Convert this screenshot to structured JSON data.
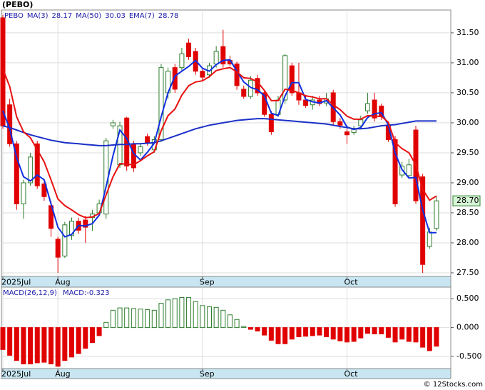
{
  "title": "(PEBO)",
  "footer": "© 12Stocks.com",
  "chart_data": [
    {
      "type": "candlestick",
      "symbol": "PEBO",
      "categories": [
        "2025Jul",
        null,
        null,
        null,
        null,
        null,
        null,
        null,
        "Aug",
        null,
        null,
        null,
        null,
        null,
        null,
        null,
        null,
        null,
        null,
        null,
        null,
        null,
        null,
        null,
        null,
        null,
        null,
        null,
        null,
        "Sep",
        null,
        null,
        null,
        null,
        null,
        null,
        null,
        null,
        null,
        null,
        null,
        null,
        null,
        null,
        null,
        null,
        null,
        null,
        null,
        null,
        "Oct",
        null,
        null,
        null,
        null,
        null,
        null,
        null,
        null,
        null,
        null,
        null,
        null,
        null
      ],
      "open": [
        31.75,
        30.3,
        29.65,
        28.65,
        29.0,
        29.65,
        28.98,
        28.62,
        28.06,
        27.78,
        28.12,
        28.36,
        28.38,
        28.42,
        28.5,
        28.48,
        29.95,
        29.3,
        30.08,
        29.65,
        29.5,
        29.77,
        29.55,
        29.72,
        30.5,
        30.92,
        30.92,
        31.33,
        31.19,
        30.86,
        30.8,
        30.98,
        31.27,
        31.04,
        30.98,
        30.56,
        30.44,
        30.74,
        30.5,
        30.14,
        30.14,
        30.38,
        30.95,
        30.5,
        30.38,
        30.3,
        30.38,
        30.33,
        30.5,
        30.02,
        29.85,
        29.84,
        29.95,
        30.2,
        30.38,
        30.28,
        29.95,
        29.72,
        29.13,
        29.12,
        29.88,
        29.1,
        27.94,
        28.24
      ],
      "high": [
        31.8,
        30.4,
        29.7,
        29.05,
        29.5,
        29.7,
        29.05,
        28.7,
        28.1,
        28.35,
        28.42,
        28.42,
        28.45,
        28.55,
        28.72,
        29.75,
        30.05,
        30.02,
        30.1,
        29.7,
        29.65,
        29.82,
        29.78,
        30.98,
        30.92,
        30.98,
        31.25,
        31.4,
        31.25,
        30.92,
        31.0,
        31.28,
        31.55,
        31.12,
        31.02,
        30.62,
        30.78,
        30.8,
        30.55,
        30.2,
        30.45,
        31.15,
        31.0,
        31.0,
        30.45,
        30.45,
        30.45,
        30.5,
        30.55,
        30.08,
        29.9,
        29.95,
        30.12,
        30.5,
        30.5,
        30.32,
        30.0,
        29.78,
        29.35,
        29.4,
        29.95,
        29.15,
        28.25,
        28.78
      ],
      "low": [
        29.9,
        29.6,
        28.55,
        28.4,
        28.95,
        28.9,
        28.7,
        28.1,
        27.5,
        27.75,
        28.05,
        28.15,
        28.0,
        28.2,
        28.45,
        28.4,
        29.9,
        29.25,
        29.2,
        29.18,
        29.45,
        29.62,
        29.5,
        29.68,
        30.4,
        30.5,
        30.85,
        31.05,
        30.8,
        30.7,
        30.75,
        30.92,
        30.92,
        30.95,
        30.55,
        30.4,
        30.4,
        30.45,
        30.1,
        29.8,
        30.1,
        30.32,
        30.45,
        30.3,
        30.25,
        30.22,
        30.28,
        30.28,
        29.95,
        29.9,
        29.65,
        29.8,
        29.9,
        30.15,
        30.02,
        30.05,
        29.68,
        28.6,
        29.08,
        29.1,
        28.65,
        27.5,
        27.9,
        28.2
      ],
      "close": [
        29.95,
        29.65,
        28.65,
        29.0,
        29.43,
        28.95,
        28.77,
        28.24,
        27.76,
        28.3,
        28.36,
        28.21,
        28.26,
        28.48,
        28.65,
        29.7,
        30.0,
        29.95,
        29.28,
        29.25,
        29.6,
        29.67,
        29.72,
        30.92,
        30.86,
        30.56,
        31.15,
        31.1,
        30.86,
        30.76,
        30.95,
        31.19,
        30.98,
        30.98,
        30.62,
        30.44,
        30.71,
        30.5,
        30.14,
        29.85,
        30.38,
        31.12,
        30.5,
        30.38,
        30.29,
        30.38,
        30.32,
        30.4,
        30.02,
        29.96,
        29.8,
        29.9,
        30.05,
        30.32,
        30.08,
        30.1,
        29.72,
        28.65,
        29.28,
        29.3,
        28.7,
        27.64,
        28.18,
        28.7
      ],
      "up_color": "#2e7d2e",
      "down_color": "#e00000",
      "series": [
        {
          "name": "MA(3)",
          "value_label": "28.17",
          "color": "#1030e0",
          "values": [
            30.2,
            29.9,
            29.42,
            29.1,
            29.03,
            29.13,
            29.05,
            28.65,
            28.26,
            28.1,
            28.14,
            28.29,
            28.28,
            28.32,
            28.46,
            28.94,
            29.45,
            29.88,
            29.74,
            29.49,
            29.38,
            29.51,
            29.66,
            30.1,
            30.5,
            30.78,
            30.86,
            30.94,
            31.04,
            30.91,
            30.86,
            30.97,
            31.04,
            31.05,
            30.86,
            30.68,
            30.59,
            30.55,
            30.45,
            30.16,
            30.12,
            30.45,
            30.67,
            30.67,
            30.39,
            30.35,
            30.33,
            30.37,
            30.25,
            30.13,
            29.93,
            29.89,
            29.92,
            30.09,
            30.15,
            30.17,
            29.97,
            29.49,
            29.22,
            29.08,
            29.09,
            28.55,
            28.17,
            28.17
          ]
        },
        {
          "name": "MA(50)",
          "value_label": "30.03",
          "color": "#1a2fc8",
          "values": [
            29.95,
            29.92,
            29.88,
            29.84,
            29.8,
            29.77,
            29.74,
            29.71,
            29.69,
            29.67,
            29.66,
            29.65,
            29.64,
            29.63,
            29.62,
            29.62,
            29.63,
            29.64,
            29.64,
            29.65,
            29.65,
            29.66,
            29.67,
            29.7,
            29.74,
            29.78,
            29.82,
            29.86,
            29.9,
            29.93,
            29.96,
            29.98,
            30.0,
            30.02,
            30.04,
            30.05,
            30.06,
            30.07,
            30.07,
            30.06,
            30.05,
            30.04,
            30.03,
            30.02,
            30.01,
            30.0,
            29.99,
            29.98,
            29.96,
            29.94,
            29.92,
            29.9,
            29.9,
            29.91,
            29.93,
            29.95,
            29.96,
            29.97,
            29.99,
            30.01,
            30.03,
            30.03,
            30.03,
            30.03
          ]
        },
        {
          "name": "EMA(7)",
          "value_label": "28.78",
          "color": "#e81010",
          "values": [
            30.9,
            30.6,
            30.1,
            29.85,
            29.75,
            29.55,
            29.35,
            29.05,
            28.73,
            28.62,
            28.55,
            28.47,
            28.42,
            28.43,
            28.49,
            28.8,
            29.1,
            29.32,
            29.31,
            29.3,
            29.37,
            29.45,
            29.52,
            29.87,
            30.12,
            30.23,
            30.46,
            30.62,
            30.68,
            30.7,
            30.77,
            30.87,
            30.9,
            30.92,
            30.85,
            30.75,
            30.74,
            30.68,
            30.54,
            30.37,
            30.37,
            30.56,
            30.54,
            30.5,
            30.45,
            30.43,
            30.4,
            30.4,
            30.3,
            30.22,
            30.11,
            30.06,
            30.06,
            30.12,
            30.11,
            30.11,
            30.01,
            29.67,
            29.57,
            29.5,
            29.3,
            28.89,
            28.71,
            28.78
          ]
        }
      ],
      "price_label": "28.70",
      "ylim": [
        27.44,
        31.88
      ],
      "yticks": [
        {
          "value": 27.5,
          "label": "27.50"
        },
        {
          "value": 28,
          "label": "28.00"
        },
        {
          "value": 28.5,
          "label": "28.50"
        },
        {
          "value": 29,
          "label": "29.00"
        },
        {
          "value": 29.5,
          "label": "29.50"
        },
        {
          "value": 30,
          "label": "30.00"
        },
        {
          "value": 30.5,
          "label": "30.50"
        },
        {
          "value": 31,
          "label": "31.00"
        },
        {
          "value": 31.5,
          "label": "31.50"
        }
      ],
      "grid": true
    },
    {
      "type": "bar",
      "title": "MACD(26,12,9)",
      "value_label": "MACD:-0.323",
      "categories": [
        "2025Jul",
        null,
        null,
        null,
        null,
        null,
        null,
        null,
        "Aug",
        null,
        null,
        null,
        null,
        null,
        null,
        null,
        null,
        null,
        null,
        null,
        null,
        null,
        null,
        null,
        null,
        null,
        null,
        null,
        null,
        "Sep",
        null,
        null,
        null,
        null,
        null,
        null,
        null,
        null,
        null,
        null,
        null,
        null,
        null,
        null,
        null,
        null,
        null,
        null,
        null,
        null,
        "Oct",
        null,
        null,
        null,
        null,
        null,
        null,
        null,
        null,
        null,
        null,
        null,
        null,
        null
      ],
      "values": [
        -0.38,
        -0.48,
        -0.57,
        -0.63,
        -0.63,
        -0.61,
        -0.6,
        -0.63,
        -0.67,
        -0.57,
        -0.51,
        -0.45,
        -0.36,
        -0.26,
        -0.14,
        0.09,
        0.3,
        0.34,
        0.34,
        0.33,
        0.32,
        0.31,
        0.3,
        0.42,
        0.48,
        0.5,
        0.52,
        0.52,
        0.45,
        0.38,
        0.36,
        0.35,
        0.3,
        0.22,
        0.14,
        0.02,
        -0.03,
        -0.06,
        -0.13,
        -0.22,
        -0.28,
        -0.28,
        -0.2,
        -0.16,
        -0.15,
        -0.14,
        -0.13,
        -0.16,
        -0.2,
        -0.23,
        -0.25,
        -0.24,
        -0.18,
        -0.1,
        -0.11,
        -0.11,
        -0.17,
        -0.25,
        -0.2,
        -0.24,
        -0.25,
        -0.34,
        -0.4,
        -0.323
      ],
      "up_color": "#2e7d2e",
      "down_color": "#e00000",
      "ylim": [
        -0.71,
        0.7
      ],
      "yticks": [
        {
          "value": -0.5,
          "label": "-0.500"
        },
        {
          "value": 0,
          "label": "0.000"
        },
        {
          "value": 0.5,
          "label": "0.500"
        }
      ],
      "grid": true
    }
  ]
}
